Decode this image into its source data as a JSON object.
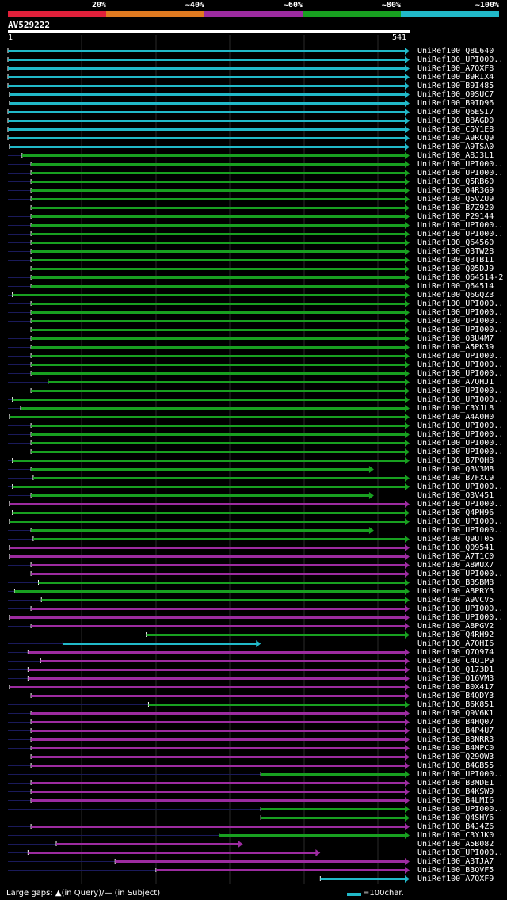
{
  "legend": {
    "items": [
      {
        "label": "20%",
        "color": "#e0203a"
      },
      {
        "label": "~40%",
        "color": "#e07a20"
      },
      {
        "label": "~60%",
        "color": "#9c2ba0"
      },
      {
        "label": "~80%",
        "color": "#18a020"
      },
      {
        "label": "~100%",
        "color": "#21b9c9"
      }
    ]
  },
  "query": {
    "name": "AV529222",
    "start_label": "1",
    "end_label": "541"
  },
  "footer": {
    "gaps_text": "Large gaps: ▲(in Query)/— (in Subject)",
    "scale_text": "=100char."
  },
  "chart_data": {
    "type": "alignment",
    "query_length": 541,
    "hits": [
      {
        "name": "UniRef100_Q8L640",
        "start": 1,
        "end": 541,
        "identity": "~100%",
        "arrow": true
      },
      {
        "name": "UniRef100_UPI000..",
        "start": 1,
        "end": 541,
        "identity": "~100%",
        "arrow": true
      },
      {
        "name": "UniRef100_A7QXF8",
        "start": 1,
        "end": 541,
        "identity": "~100%",
        "arrow": true
      },
      {
        "name": "UniRef100_B9RIX4",
        "start": 1,
        "end": 541,
        "identity": "~100%",
        "arrow": true
      },
      {
        "name": "UniRef100_B9I485",
        "start": 1,
        "end": 541,
        "identity": "~100%",
        "arrow": true
      },
      {
        "name": "UniRef100_Q9SUC7",
        "start": 3,
        "end": 541,
        "identity": "~100%",
        "arrow": true
      },
      {
        "name": "UniRef100_B9ID96",
        "start": 3,
        "end": 541,
        "identity": "~100%",
        "arrow": true
      },
      {
        "name": "UniRef100_Q6ESI7",
        "start": 1,
        "end": 541,
        "identity": "~100%",
        "arrow": true
      },
      {
        "name": "UniRef100_B8AGD0",
        "start": 1,
        "end": 541,
        "identity": "~100%",
        "arrow": true
      },
      {
        "name": "UniRef100_C5Y1E8",
        "start": 1,
        "end": 541,
        "identity": "~100%",
        "arrow": true
      },
      {
        "name": "UniRef100_A9RCQ9",
        "start": 1,
        "end": 541,
        "identity": "~100%",
        "arrow": true
      },
      {
        "name": "UniRef100_A9TSA0",
        "start": 3,
        "end": 541,
        "identity": "~100%",
        "arrow": true
      },
      {
        "name": "UniRef100_A8J3L1",
        "start": 20,
        "end": 541,
        "identity": "~80%",
        "arrow": true
      },
      {
        "name": "UniRef100_UPI000..",
        "start": 32,
        "end": 541,
        "identity": "~80%",
        "arrow": true
      },
      {
        "name": "UniRef100_UPI000..",
        "start": 32,
        "end": 541,
        "identity": "~80%",
        "arrow": true
      },
      {
        "name": "UniRef100_Q5RB60",
        "start": 32,
        "end": 541,
        "identity": "~80%",
        "arrow": true
      },
      {
        "name": "UniRef100_Q4R3G9",
        "start": 32,
        "end": 541,
        "identity": "~80%",
        "arrow": true
      },
      {
        "name": "UniRef100_Q5VZU9",
        "start": 32,
        "end": 541,
        "identity": "~80%",
        "arrow": true
      },
      {
        "name": "UniRef100_B7Z920",
        "start": 32,
        "end": 541,
        "identity": "~80%",
        "arrow": true
      },
      {
        "name": "UniRef100_P29144",
        "start": 32,
        "end": 541,
        "identity": "~80%",
        "arrow": true
      },
      {
        "name": "UniRef100_UPI000..",
        "start": 32,
        "end": 541,
        "identity": "~80%",
        "arrow": true
      },
      {
        "name": "UniRef100_UPI000..",
        "start": 32,
        "end": 541,
        "identity": "~80%",
        "arrow": true
      },
      {
        "name": "UniRef100_Q64560",
        "start": 32,
        "end": 541,
        "identity": "~80%",
        "arrow": true
      },
      {
        "name": "UniRef100_Q3TW28",
        "start": 32,
        "end": 541,
        "identity": "~80%",
        "arrow": true
      },
      {
        "name": "UniRef100_Q3TB11",
        "start": 32,
        "end": 541,
        "identity": "~80%",
        "arrow": true
      },
      {
        "name": "UniRef100_Q05DJ9",
        "start": 32,
        "end": 541,
        "identity": "~80%",
        "arrow": true
      },
      {
        "name": "UniRef100_Q64514-2",
        "start": 32,
        "end": 541,
        "identity": "~80%",
        "arrow": true
      },
      {
        "name": "UniRef100_Q64514",
        "start": 32,
        "end": 541,
        "identity": "~80%",
        "arrow": true
      },
      {
        "name": "UniRef100_Q6GQZ3",
        "start": 7,
        "end": 541,
        "identity": "~80%",
        "arrow": true
      },
      {
        "name": "UniRef100_UPI000..",
        "start": 32,
        "end": 541,
        "identity": "~80%",
        "arrow": true
      },
      {
        "name": "UniRef100_UPI000..",
        "start": 32,
        "end": 541,
        "identity": "~80%",
        "arrow": true
      },
      {
        "name": "UniRef100_UPI000..",
        "start": 32,
        "end": 541,
        "identity": "~80%",
        "arrow": true
      },
      {
        "name": "UniRef100_UPI000..",
        "start": 32,
        "end": 541,
        "identity": "~80%",
        "arrow": true
      },
      {
        "name": "UniRef100_Q3U4M7",
        "start": 32,
        "end": 541,
        "identity": "~80%",
        "arrow": true
      },
      {
        "name": "UniRef100_A5PK39",
        "start": 32,
        "end": 541,
        "identity": "~80%",
        "arrow": true
      },
      {
        "name": "UniRef100_UPI000..",
        "start": 32,
        "end": 541,
        "identity": "~80%",
        "arrow": true
      },
      {
        "name": "UniRef100_UPI000..",
        "start": 32,
        "end": 541,
        "identity": "~80%",
        "arrow": true
      },
      {
        "name": "UniRef100_UPI000..",
        "start": 32,
        "end": 541,
        "identity": "~80%",
        "arrow": true
      },
      {
        "name": "UniRef100_A7QHJ1",
        "start": 55,
        "end": 541,
        "identity": "~80%",
        "arrow": true
      },
      {
        "name": "UniRef100_UPI000..",
        "start": 32,
        "end": 541,
        "identity": "~80%",
        "arrow": true
      },
      {
        "name": "UniRef100_UPI000..",
        "start": 7,
        "end": 541,
        "identity": "~80%",
        "arrow": true
      },
      {
        "name": "UniRef100_C3YJL8",
        "start": 18,
        "end": 541,
        "identity": "~80%",
        "arrow": true
      },
      {
        "name": "UniRef100_A4A0H0",
        "start": 3,
        "end": 541,
        "identity": "~80%",
        "arrow": true
      },
      {
        "name": "UniRef100_UPI000..",
        "start": 32,
        "end": 541,
        "identity": "~80%",
        "arrow": true
      },
      {
        "name": "UniRef100_UPI000..",
        "start": 32,
        "end": 541,
        "identity": "~80%",
        "arrow": true
      },
      {
        "name": "UniRef100_UPI000..",
        "start": 32,
        "end": 541,
        "identity": "~80%",
        "arrow": true
      },
      {
        "name": "UniRef100_UPI000..",
        "start": 32,
        "end": 541,
        "identity": "~80%",
        "arrow": true
      },
      {
        "name": "UniRef100_B7PQH8",
        "start": 7,
        "end": 541,
        "identity": "~80%",
        "arrow": true
      },
      {
        "name": "UniRef100_Q3V3M8",
        "start": 32,
        "end": 493,
        "identity": "~80%",
        "arrow": true
      },
      {
        "name": "UniRef100_B7FXC9",
        "start": 35,
        "end": 541,
        "identity": "~80%",
        "arrow": true
      },
      {
        "name": "UniRef100_UPI000..",
        "start": 7,
        "end": 541,
        "identity": "~80%",
        "arrow": true
      },
      {
        "name": "UniRef100_Q3V451",
        "start": 32,
        "end": 493,
        "identity": "~80%",
        "arrow": true
      },
      {
        "name": "UniRef100_UPI000..",
        "start": 3,
        "end": 541,
        "identity": "~60%",
        "arrow": true
      },
      {
        "name": "UniRef100_Q4PH96",
        "start": 7,
        "end": 541,
        "identity": "~80%",
        "arrow": true
      },
      {
        "name": "UniRef100_UPI000..",
        "start": 3,
        "end": 541,
        "identity": "~80%",
        "arrow": true
      },
      {
        "name": "UniRef100_UPI000..",
        "start": 32,
        "end": 493,
        "identity": "~80%",
        "arrow": true
      },
      {
        "name": "UniRef100_Q9UT05",
        "start": 35,
        "end": 541,
        "identity": "~80%",
        "arrow": true
      },
      {
        "name": "UniRef100_Q09541",
        "start": 3,
        "end": 541,
        "identity": "~60%",
        "arrow": true
      },
      {
        "name": "UniRef100_A7T1C0",
        "start": 3,
        "end": 541,
        "identity": "~60%",
        "arrow": true
      },
      {
        "name": "UniRef100_A8WUX7",
        "start": 32,
        "end": 541,
        "identity": "~60%",
        "arrow": true
      },
      {
        "name": "UniRef100_UPI000..",
        "start": 32,
        "end": 541,
        "identity": "~60%",
        "arrow": true
      },
      {
        "name": "UniRef100_B3SBM8",
        "start": 42,
        "end": 541,
        "identity": "~80%",
        "arrow": true
      },
      {
        "name": "UniRef100_A8PRY3",
        "start": 10,
        "end": 541,
        "identity": "~80%",
        "arrow": true
      },
      {
        "name": "UniRef100_A9VCV5",
        "start": 46,
        "end": 541,
        "identity": "~80%",
        "arrow": true
      },
      {
        "name": "UniRef100_UPI000..",
        "start": 32,
        "end": 541,
        "identity": "~60%",
        "arrow": true
      },
      {
        "name": "UniRef100_UPI000..",
        "start": 3,
        "end": 541,
        "identity": "~60%",
        "arrow": true
      },
      {
        "name": "UniRef100_A8PGV2",
        "start": 32,
        "end": 541,
        "identity": "~60%",
        "arrow": true
      },
      {
        "name": "UniRef100_Q4RH92",
        "start": 187,
        "end": 541,
        "identity": "~80%",
        "arrow": true
      },
      {
        "name": "UniRef100_A7QHI6",
        "start": 75,
        "end": 341,
        "identity": "~100%",
        "arrow": true
      },
      {
        "name": "UniRef100_Q7Q974",
        "start": 28,
        "end": 541,
        "identity": "~60%",
        "arrow": true
      },
      {
        "name": "UniRef100_C4Q1P9",
        "start": 45,
        "end": 541,
        "identity": "~60%",
        "arrow": true
      },
      {
        "name": "UniRef100_Q173D1",
        "start": 28,
        "end": 541,
        "identity": "~60%",
        "arrow": true
      },
      {
        "name": "UniRef100_Q16VM3",
        "start": 28,
        "end": 541,
        "identity": "~60%",
        "arrow": true
      },
      {
        "name": "UniRef100_B0X417",
        "start": 3,
        "end": 541,
        "identity": "~60%",
        "arrow": true
      },
      {
        "name": "UniRef100_B4QDY3",
        "start": 32,
        "end": 541,
        "identity": "~60%",
        "arrow": true
      },
      {
        "name": "UniRef100_B6K851",
        "start": 190,
        "end": 541,
        "identity": "~80%",
        "arrow": true
      },
      {
        "name": "UniRef100_Q9V6K1",
        "start": 32,
        "end": 541,
        "identity": "~60%",
        "arrow": true
      },
      {
        "name": "UniRef100_B4HQ07",
        "start": 32,
        "end": 541,
        "identity": "~60%",
        "arrow": true
      },
      {
        "name": "UniRef100_B4P4U7",
        "start": 32,
        "end": 541,
        "identity": "~60%",
        "arrow": true
      },
      {
        "name": "UniRef100_B3NRR3",
        "start": 32,
        "end": 541,
        "identity": "~60%",
        "arrow": true
      },
      {
        "name": "UniRef100_B4MPC0",
        "start": 32,
        "end": 541,
        "identity": "~60%",
        "arrow": true
      },
      {
        "name": "UniRef100_Q29OW3",
        "start": 32,
        "end": 541,
        "identity": "~60%",
        "arrow": true
      },
      {
        "name": "UniRef100_B4GB55",
        "start": 32,
        "end": 541,
        "identity": "~60%",
        "arrow": true
      },
      {
        "name": "UniRef100_UPI000..",
        "start": 341,
        "end": 541,
        "identity": "~80%",
        "arrow": true
      },
      {
        "name": "UniRef100_B3MDE1",
        "start": 32,
        "end": 541,
        "identity": "~60%",
        "arrow": true
      },
      {
        "name": "UniRef100_B4KSW9",
        "start": 32,
        "end": 541,
        "identity": "~60%",
        "arrow": true
      },
      {
        "name": "UniRef100_B4LMI6",
        "start": 32,
        "end": 541,
        "identity": "~60%",
        "arrow": true
      },
      {
        "name": "UniRef100_UPI000..",
        "start": 341,
        "end": 541,
        "identity": "~80%",
        "arrow": true
      },
      {
        "name": "UniRef100_Q4SHY6",
        "start": 341,
        "end": 541,
        "identity": "~80%",
        "arrow": true
      },
      {
        "name": "UniRef100_B4J4Z6",
        "start": 32,
        "end": 541,
        "identity": "~60%",
        "arrow": true
      },
      {
        "name": "UniRef100_C3YJK0",
        "start": 285,
        "end": 541,
        "identity": "~80%",
        "arrow": true
      },
      {
        "name": "UniRef100_A5B082",
        "start": 66,
        "end": 317,
        "identity": "~60%",
        "arrow": true
      },
      {
        "name": "UniRef100_UPI000..",
        "start": 28,
        "end": 421,
        "identity": "~60%",
        "arrow": true
      },
      {
        "name": "UniRef100_A3TJA7",
        "start": 145,
        "end": 541,
        "identity": "~60%",
        "arrow": true
      },
      {
        "name": "UniRef100_B3QVF5",
        "start": 200,
        "end": 541,
        "identity": "~60%",
        "arrow": true
      },
      {
        "name": "UniRef100_A7QXF9",
        "start": 421,
        "end": 541,
        "identity": "~100%",
        "arrow": true
      }
    ]
  }
}
